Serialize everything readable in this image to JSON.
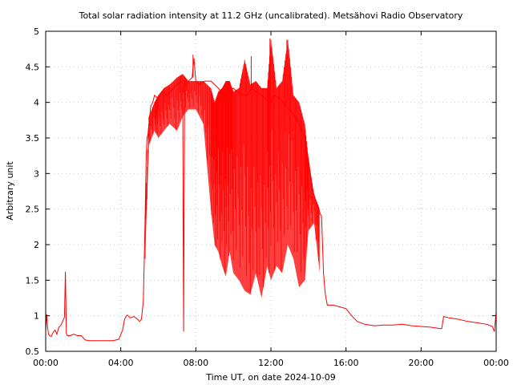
{
  "chart_data": {
    "type": "line",
    "title": "Total solar radiation intensity at 11.2 GHz (uncalibrated). Metsähovi Radio Observatory",
    "xlabel": "Time UT, on date 2024-10-09",
    "ylabel": "Arbitrary unit",
    "xlim": [
      0,
      24
    ],
    "ylim": [
      0.5,
      5
    ],
    "x_ticks": [
      0,
      4,
      8,
      12,
      16,
      20,
      24
    ],
    "x_tick_labels": [
      "00:00",
      "04:00",
      "08:00",
      "12:00",
      "16:00",
      "20:00",
      "00:00"
    ],
    "y_ticks": [
      0.5,
      1,
      1.5,
      2,
      2.5,
      3,
      3.5,
      4,
      4.5,
      5
    ],
    "y_tick_labels": [
      "0.5",
      "1",
      "1.5",
      "2",
      "2.5",
      "3",
      "3.5",
      "4",
      "4.5",
      "5"
    ],
    "grid": true,
    "line_color": "#ff0000",
    "series": [
      {
        "x": [
          0,
          0.05,
          0.1,
          0.15,
          0.2,
          0.3,
          0.4,
          0.5,
          0.6,
          0.7,
          0.8,
          0.9,
          1.0,
          1.05,
          1.1,
          1.15,
          1.2,
          1.3,
          1.4,
          1.5,
          1.7,
          1.9,
          2.1,
          2.3,
          2.5,
          2.8,
          3.0,
          3.3,
          3.6,
          3.9,
          4.1,
          4.2,
          4.3,
          4.35,
          4.5,
          4.7,
          4.9,
          5.0,
          5.1,
          5.2,
          5.25,
          5.3,
          5.35,
          5.4,
          5.45,
          5.5,
          5.6,
          5.7,
          5.8,
          6.0,
          6.2,
          6.5,
          6.8,
          7.0,
          7.2,
          7.3,
          7.35,
          7.4,
          7.45,
          7.6,
          7.8,
          7.9,
          8.0,
          8.2,
          8.5,
          8.8,
          9.0,
          9.2,
          9.5,
          9.8,
          10.0,
          10.2,
          10.5,
          10.7,
          11.0,
          11.2,
          11.5,
          11.7,
          11.9,
          12.0,
          12.2,
          12.5,
          12.8,
          13.0,
          13.3,
          13.5,
          13.8,
          14.0,
          14.2,
          14.4,
          14.6,
          14.7,
          14.8,
          14.9,
          15.0,
          15.3,
          15.6,
          16.0,
          16.3,
          16.6,
          17.0,
          17.5,
          18.0,
          18.5,
          19.0,
          19.5,
          20.0,
          20.5,
          21.0,
          21.1,
          21.2,
          21.5,
          22.0,
          22.5,
          23.0,
          23.5,
          23.8,
          23.9,
          24.0
        ],
        "y": [
          0.78,
          1.02,
          0.85,
          0.74,
          0.72,
          0.71,
          0.77,
          0.8,
          0.74,
          0.84,
          0.86,
          0.92,
          0.98,
          1.62,
          0.75,
          0.72,
          0.72,
          0.72,
          0.73,
          0.74,
          0.72,
          0.72,
          0.66,
          0.65,
          0.65,
          0.65,
          0.65,
          0.65,
          0.65,
          0.67,
          0.8,
          0.95,
          1.0,
          1.01,
          0.97,
          0.99,
          0.95,
          0.92,
          0.95,
          1.2,
          1.75,
          2.4,
          3.2,
          3.5,
          3.55,
          3.7,
          3.95,
          4.0,
          4.1,
          4.05,
          4.15,
          4.1,
          4.2,
          4.25,
          4.28,
          4.3,
          0.78,
          4.3,
          4.25,
          4.3,
          4.35,
          4.62,
          4.3,
          4.25,
          4.3,
          4.3,
          4.25,
          4.2,
          4.1,
          4.15,
          4.2,
          4.15,
          4.1,
          4.1,
          4.2,
          4.15,
          4.1,
          4.05,
          4.0,
          4.0,
          4.1,
          4.05,
          3.95,
          3.9,
          3.8,
          3.7,
          3.5,
          3.2,
          2.8,
          2.6,
          2.45,
          2.4,
          1.6,
          1.3,
          1.15,
          1.15,
          1.13,
          1.1,
          1.0,
          0.92,
          0.88,
          0.86,
          0.87,
          0.87,
          0.88,
          0.86,
          0.85,
          0.84,
          0.82,
          0.82,
          0.99,
          0.97,
          0.95,
          0.92,
          0.9,
          0.88,
          0.85,
          0.78,
          1.05
        ],
        "range_envelope": {
          "x": [
            5.3,
            5.5,
            5.8,
            6.0,
            6.3,
            6.6,
            7.0,
            7.3,
            7.6,
            8.0,
            8.4,
            8.8,
            9.0,
            9.2,
            9.4,
            9.6,
            9.8,
            10.0,
            10.3,
            10.6,
            10.9,
            11.2,
            11.5,
            11.8,
            12.0,
            12.3,
            12.6,
            12.9,
            13.2,
            13.5,
            13.8,
            14.0,
            14.3,
            14.6
          ],
          "low": [
            1.8,
            3.4,
            3.6,
            3.5,
            3.6,
            3.7,
            3.6,
            3.8,
            3.9,
            3.9,
            3.7,
            2.5,
            2.0,
            1.9,
            1.7,
            1.55,
            1.9,
            1.6,
            1.5,
            1.35,
            1.3,
            1.6,
            1.25,
            1.7,
            1.5,
            1.7,
            1.6,
            2.0,
            1.8,
            1.4,
            1.5,
            2.2,
            2.3,
            1.6
          ],
          "high": [
            2.4,
            3.8,
            4.0,
            4.1,
            4.2,
            4.25,
            4.35,
            4.4,
            4.3,
            4.3,
            4.3,
            4.2,
            4.0,
            4.15,
            4.2,
            4.3,
            4.3,
            4.15,
            4.2,
            4.6,
            4.25,
            4.3,
            4.2,
            4.2,
            4.88,
            4.2,
            4.3,
            4.88,
            4.1,
            4.0,
            3.7,
            3.2,
            2.7,
            2.5
          ]
        },
        "spikes": [
          {
            "x": 7.35,
            "y": 0.78
          },
          {
            "x": 7.85,
            "y": 4.67
          },
          {
            "x": 10.95,
            "y": 4.65
          },
          {
            "x": 11.95,
            "y": 4.9
          },
          {
            "x": 12.85,
            "y": 4.88
          },
          {
            "x": 1.05,
            "y": 1.62
          }
        ]
      }
    ]
  }
}
